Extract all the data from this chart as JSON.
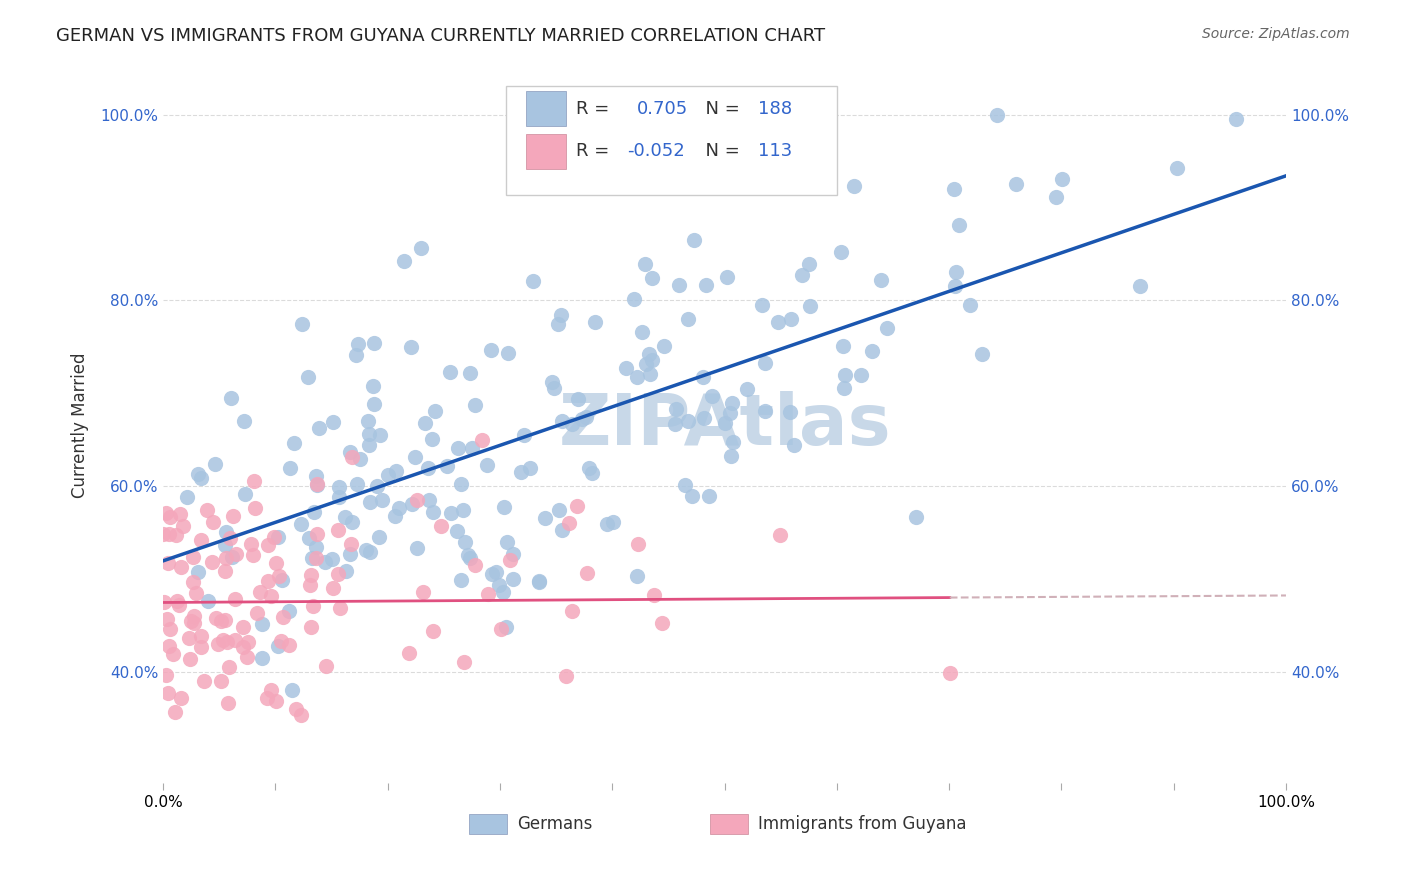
{
  "title": "GERMAN VS IMMIGRANTS FROM GUYANA CURRENTLY MARRIED CORRELATION CHART",
  "source": "Source: ZipAtlas.com",
  "ylabel": "Currently Married",
  "ytick_labels": [
    "40.0%",
    "60.0%",
    "80.0%",
    "100.0%"
  ],
  "ytick_positions": [
    0.4,
    0.6,
    0.8,
    1.0
  ],
  "legend_r_blue": "0.705",
  "legend_n_blue": "188",
  "legend_r_pink": "-0.052",
  "legend_n_pink": "113",
  "legend_label_blue": "Germans",
  "legend_label_pink": "Immigrants from Guyana",
  "blue_dot_color": "#a8c4e0",
  "pink_dot_color": "#f4a7bb",
  "blue_line_color": "#1a56b0",
  "pink_line_color": "#e05080",
  "pink_dash_color": "#d0b0b8",
  "watermark_text": "ZIPAtlas",
  "watermark_color": "#c8d8e8",
  "background_color": "#ffffff",
  "grid_color": "#cccccc",
  "blue_scatter_seed": 42,
  "pink_scatter_seed": 7,
  "blue_R": 0.705,
  "pink_R": -0.052,
  "blue_N": 188,
  "pink_N": 113,
  "xmin": 0.0,
  "xmax": 1.0,
  "ymin": 0.28,
  "ymax": 1.05
}
